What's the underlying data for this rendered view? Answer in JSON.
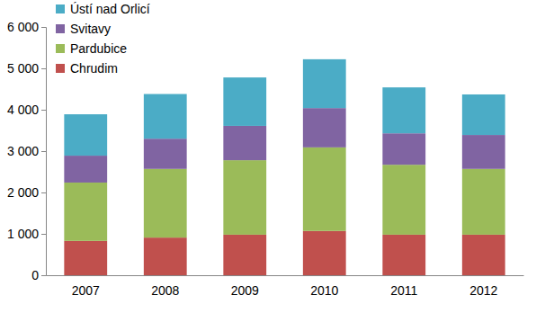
{
  "chart_data": {
    "type": "bar",
    "stacked": true,
    "legend": "top-left",
    "categories": [
      "2007",
      "2008",
      "2009",
      "2010",
      "2011",
      "2012"
    ],
    "series": [
      {
        "name": "Chrudim",
        "color": "#c0504d",
        "values": [
          830,
          910,
          980,
          1070,
          980,
          980
        ]
      },
      {
        "name": "Pardubice",
        "color": "#9bbb59",
        "values": [
          1410,
          1660,
          1800,
          2020,
          1690,
          1590
        ]
      },
      {
        "name": "Svitavy",
        "color": "#8064a2",
        "values": [
          650,
          730,
          830,
          950,
          760,
          820
        ]
      },
      {
        "name": "Ústí nad Orlicí",
        "color": "#4bacc6",
        "values": [
          1000,
          1080,
          1170,
          1180,
          1110,
          980
        ]
      }
    ],
    "ylim": [
      0,
      6000
    ],
    "yticks": [
      0,
      {
        "value": 1000,
        "label": "1 000"
      },
      {
        "value": 2000,
        "label": "2 000"
      },
      {
        "value": 3000,
        "label": "3 000"
      },
      {
        "value": 4000,
        "label": "4 000"
      },
      {
        "value": 5000,
        "label": "5 000"
      },
      {
        "value": 6000,
        "label": "6 000"
      }
    ]
  }
}
